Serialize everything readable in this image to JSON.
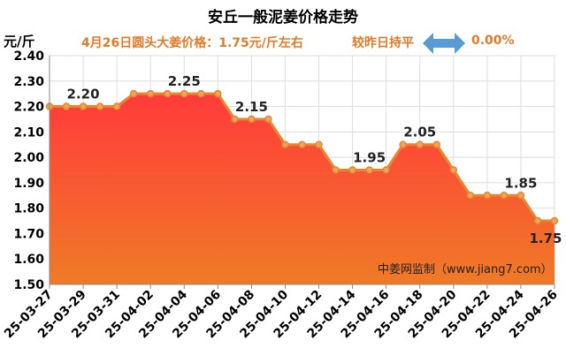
{
  "header": {
    "title": "安丘一般泥姜价格走势",
    "unit": "元/斤",
    "subtitle": "4月26日圆头大姜价格：1.75元/斤左右",
    "change_label": "较昨日持平",
    "change_value": "0.00%",
    "change_icon": "left-right-arrow-icon"
  },
  "watermark": "中姜网监制（www.jiang7.com）",
  "colors": {
    "line": "#e8852f",
    "marker_fill": "#f4a35a",
    "area_top": "#ff3b3b",
    "area_bottom": "#f07a26",
    "accent_text": "#e07b2a",
    "arrow": "#5b9bd5"
  },
  "chart_data": {
    "type": "area",
    "x": [
      "25-03-27",
      "25-03-28",
      "25-03-29",
      "25-03-30",
      "25-03-31",
      "25-04-01",
      "25-04-02",
      "25-04-03",
      "25-04-04",
      "25-04-05",
      "25-04-06",
      "25-04-07",
      "25-04-08",
      "25-04-09",
      "25-04-10",
      "25-04-11",
      "25-04-12",
      "25-04-13",
      "25-04-14",
      "25-04-15",
      "25-04-16",
      "25-04-17",
      "25-04-18",
      "25-04-19",
      "25-04-20",
      "25-04-21",
      "25-04-22",
      "25-04-23",
      "25-04-24",
      "25-04-25",
      "25-04-26"
    ],
    "values": [
      2.2,
      2.2,
      2.2,
      2.2,
      2.2,
      2.25,
      2.25,
      2.25,
      2.25,
      2.25,
      2.25,
      2.15,
      2.15,
      2.15,
      2.05,
      2.05,
      2.05,
      1.95,
      1.95,
      1.95,
      1.95,
      2.05,
      2.05,
      2.05,
      1.95,
      1.85,
      1.85,
      1.85,
      1.85,
      1.75,
      1.75
    ],
    "x_tick_labels": [
      "25-03-27",
      "25-03-29",
      "25-03-31",
      "25-04-02",
      "25-04-04",
      "25-04-06",
      "25-04-08",
      "25-04-10",
      "25-04-12",
      "25-04-14",
      "25-04-16",
      "25-04-18",
      "25-04-20",
      "25-04-22",
      "25-04-24",
      "25-04-26"
    ],
    "y_ticks": [
      "1.50",
      "1.60",
      "1.70",
      "1.80",
      "1.90",
      "2.00",
      "2.10",
      "2.20",
      "2.30",
      "2.40"
    ],
    "ylim": [
      1.5,
      2.4
    ],
    "grid": true,
    "data_labels": [
      {
        "x": "25-03-29",
        "text": "2.20"
      },
      {
        "x": "25-04-04",
        "text": "2.25"
      },
      {
        "x": "25-04-08",
        "text": "2.15"
      },
      {
        "x": "25-04-15",
        "text": "1.95"
      },
      {
        "x": "25-04-18",
        "text": "2.05"
      },
      {
        "x": "25-04-24",
        "text": "1.85"
      },
      {
        "x": "25-04-26",
        "text": "1.75"
      }
    ]
  }
}
